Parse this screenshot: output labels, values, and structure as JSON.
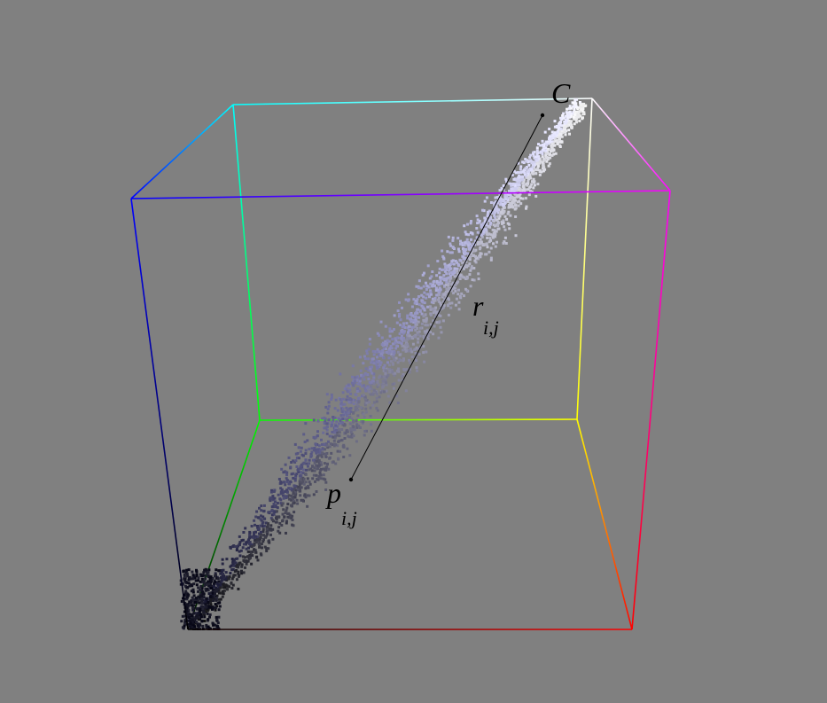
{
  "background_color": "#808080",
  "labels": {
    "center": "C",
    "pixel_main": "p",
    "pixel_sub": "i,j",
    "radius_main": "r",
    "radius_sub": "i,j"
  },
  "cube_vertex_colors": {
    "black": "#000000",
    "red": "#ff0000",
    "green": "#00ff00",
    "yellow": "#ffff00",
    "blue": "#0000ff",
    "magenta": "#ff00ff",
    "cyan": "#00ffff",
    "white": "#ffffff"
  }
}
